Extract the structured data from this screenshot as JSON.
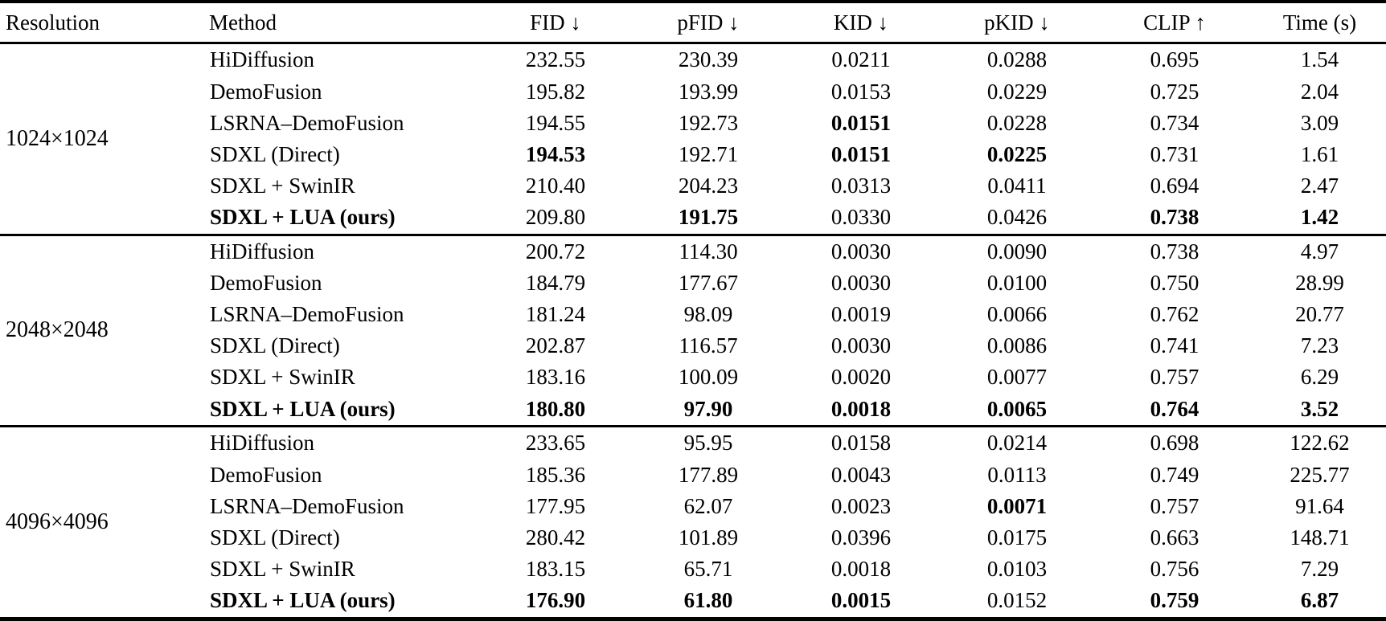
{
  "table": {
    "headers": [
      "Resolution",
      "Method",
      "FID ↓",
      "pFID ↓",
      "KID ↓",
      "pKID ↓",
      "CLIP ↑",
      "Time (s)"
    ],
    "groups": [
      {
        "resolution": "1024×1024",
        "rows": [
          {
            "method": "HiDiffusion",
            "method_bold": false,
            "values": [
              "232.55",
              "230.39",
              "0.0211",
              "0.0288",
              "0.695",
              "1.54"
            ],
            "bold": [
              false,
              false,
              false,
              false,
              false,
              false
            ]
          },
          {
            "method": "DemoFusion",
            "method_bold": false,
            "values": [
              "195.82",
              "193.99",
              "0.0153",
              "0.0229",
              "0.725",
              "2.04"
            ],
            "bold": [
              false,
              false,
              false,
              false,
              false,
              false
            ]
          },
          {
            "method": "LSRNA–DemoFusion",
            "method_bold": false,
            "values": [
              "194.55",
              "192.73",
              "0.0151",
              "0.0228",
              "0.734",
              "3.09"
            ],
            "bold": [
              false,
              false,
              true,
              false,
              false,
              false
            ]
          },
          {
            "method": "SDXL (Direct)",
            "method_bold": false,
            "values": [
              "194.53",
              "192.71",
              "0.0151",
              "0.0225",
              "0.731",
              "1.61"
            ],
            "bold": [
              true,
              false,
              true,
              true,
              false,
              false
            ]
          },
          {
            "method": "SDXL + SwinIR",
            "method_bold": false,
            "values": [
              "210.40",
              "204.23",
              "0.0313",
              "0.0411",
              "0.694",
              "2.47"
            ],
            "bold": [
              false,
              false,
              false,
              false,
              false,
              false
            ]
          },
          {
            "method": "SDXL + LUA (ours)",
            "method_bold": true,
            "values": [
              "209.80",
              "191.75",
              "0.0330",
              "0.0426",
              "0.738",
              "1.42"
            ],
            "bold": [
              false,
              true,
              false,
              false,
              true,
              true
            ]
          }
        ]
      },
      {
        "resolution": "2048×2048",
        "rows": [
          {
            "method": "HiDiffusion",
            "method_bold": false,
            "values": [
              "200.72",
              "114.30",
              "0.0030",
              "0.0090",
              "0.738",
              "4.97"
            ],
            "bold": [
              false,
              false,
              false,
              false,
              false,
              false
            ]
          },
          {
            "method": "DemoFusion",
            "method_bold": false,
            "values": [
              "184.79",
              "177.67",
              "0.0030",
              "0.0100",
              "0.750",
              "28.99"
            ],
            "bold": [
              false,
              false,
              false,
              false,
              false,
              false
            ]
          },
          {
            "method": "LSRNA–DemoFusion",
            "method_bold": false,
            "values": [
              "181.24",
              "98.09",
              "0.0019",
              "0.0066",
              "0.762",
              "20.77"
            ],
            "bold": [
              false,
              false,
              false,
              false,
              false,
              false
            ]
          },
          {
            "method": "SDXL (Direct)",
            "method_bold": false,
            "values": [
              "202.87",
              "116.57",
              "0.0030",
              "0.0086",
              "0.741",
              "7.23"
            ],
            "bold": [
              false,
              false,
              false,
              false,
              false,
              false
            ]
          },
          {
            "method": "SDXL + SwinIR",
            "method_bold": false,
            "values": [
              "183.16",
              "100.09",
              "0.0020",
              "0.0077",
              "0.757",
              "6.29"
            ],
            "bold": [
              false,
              false,
              false,
              false,
              false,
              false
            ]
          },
          {
            "method": "SDXL + LUA (ours)",
            "method_bold": true,
            "values": [
              "180.80",
              "97.90",
              "0.0018",
              "0.0065",
              "0.764",
              "3.52"
            ],
            "bold": [
              true,
              true,
              true,
              true,
              true,
              true
            ]
          }
        ]
      },
      {
        "resolution": "4096×4096",
        "rows": [
          {
            "method": "HiDiffusion",
            "method_bold": false,
            "values": [
              "233.65",
              "95.95",
              "0.0158",
              "0.0214",
              "0.698",
              "122.62"
            ],
            "bold": [
              false,
              false,
              false,
              false,
              false,
              false
            ]
          },
          {
            "method": "DemoFusion",
            "method_bold": false,
            "values": [
              "185.36",
              "177.89",
              "0.0043",
              "0.0113",
              "0.749",
              "225.77"
            ],
            "bold": [
              false,
              false,
              false,
              false,
              false,
              false
            ]
          },
          {
            "method": "LSRNA–DemoFusion",
            "method_bold": false,
            "values": [
              "177.95",
              "62.07",
              "0.0023",
              "0.0071",
              "0.757",
              "91.64"
            ],
            "bold": [
              false,
              false,
              false,
              true,
              false,
              false
            ]
          },
          {
            "method": "SDXL (Direct)",
            "method_bold": false,
            "values": [
              "280.42",
              "101.89",
              "0.0396",
              "0.0175",
              "0.663",
              "148.71"
            ],
            "bold": [
              false,
              false,
              false,
              false,
              false,
              false
            ]
          },
          {
            "method": "SDXL + SwinIR",
            "method_bold": false,
            "values": [
              "183.15",
              "65.71",
              "0.0018",
              "0.0103",
              "0.756",
              "7.29"
            ],
            "bold": [
              false,
              false,
              false,
              false,
              false,
              false
            ]
          },
          {
            "method": "SDXL + LUA (ours)",
            "method_bold": true,
            "values": [
              "176.90",
              "61.80",
              "0.0015",
              "0.0152",
              "0.759",
              "6.87"
            ],
            "bold": [
              true,
              true,
              true,
              false,
              true,
              true
            ]
          }
        ]
      }
    ]
  }
}
